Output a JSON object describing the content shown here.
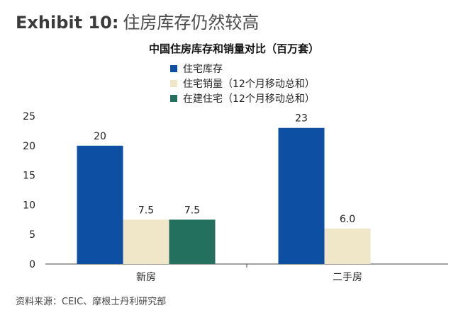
{
  "header": {
    "exhibit_label": "Exhibit 10:",
    "exhibit_title": "住房库存仍然较高"
  },
  "source": "资料来源：CEIC、摩根士丹利研究部",
  "chart_data": {
    "type": "bar",
    "title": "中国住房库存和销量对比（百万套）",
    "categories": [
      "新房",
      "二手房"
    ],
    "series": [
      {
        "name": "住宅库存",
        "values": [
          20,
          23
        ],
        "labels": [
          "20",
          "23"
        ],
        "color": "#0d4fa3"
      },
      {
        "name": "住宅销量（12个月移动总和）",
        "values": [
          7.5,
          6.0
        ],
        "labels": [
          "7.5",
          "6.0"
        ],
        "color": "#f0e6c8"
      },
      {
        "name": "在建住宅（12个月移动总和）",
        "values": [
          7.5,
          null
        ],
        "labels": [
          "7.5",
          null
        ],
        "color": "#23705e"
      }
    ],
    "yticks": [
      0,
      5,
      10,
      15,
      20,
      25
    ],
    "ylim": [
      0,
      25
    ],
    "xlabel": "",
    "ylabel": "",
    "legend_position": "top-center",
    "grid": false
  }
}
